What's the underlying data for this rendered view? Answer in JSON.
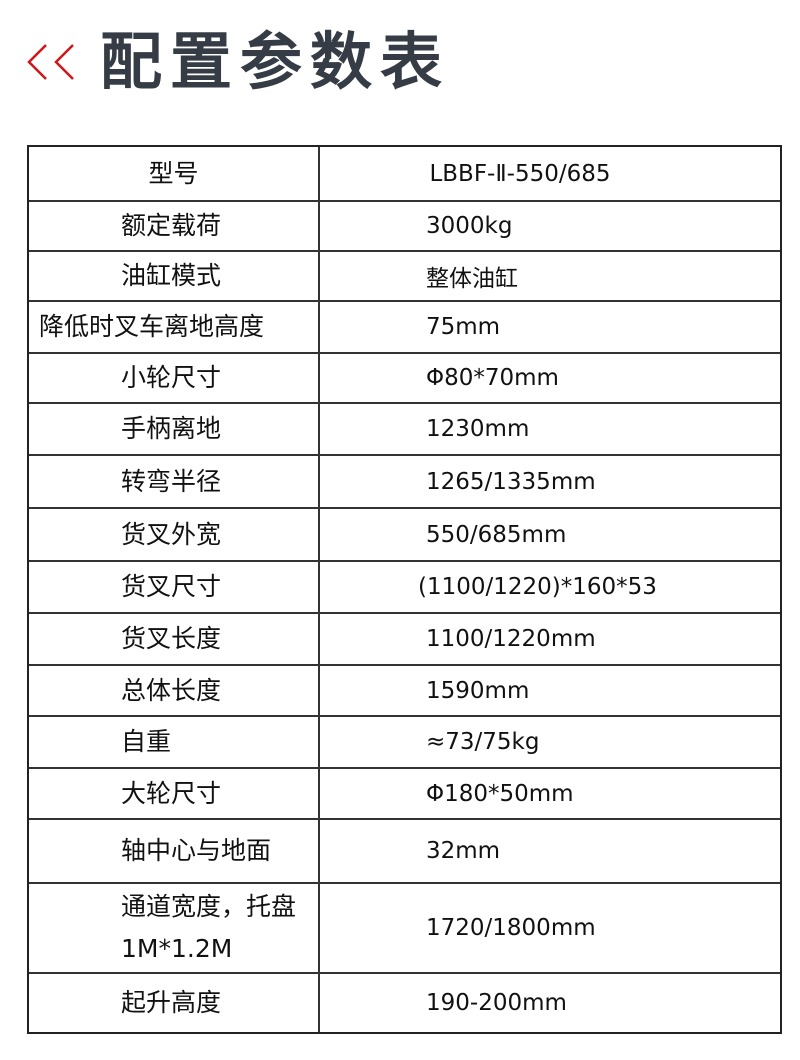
{
  "header": {
    "title": "配置参数表",
    "accent_color": "#d0161b",
    "title_color": "#363c45",
    "icon": "double-chevron-left-icon"
  },
  "table": {
    "rows": [
      {
        "label": "型号",
        "value": "LBBF-Ⅱ-550/685"
      },
      {
        "label": "额定载荷",
        "value": "3000kg"
      },
      {
        "label": "油缸模式",
        "value": "整体油缸"
      },
      {
        "label": "降低时叉车离地高度",
        "value": "75mm"
      },
      {
        "label": "小轮尺寸",
        "value": "Φ80*70mm"
      },
      {
        "label": "手柄离地",
        "value": "1230mm"
      },
      {
        "label": "转弯半径",
        "value": "1265/1335mm"
      },
      {
        "label": "货叉外宽",
        "value": "550/685mm"
      },
      {
        "label": "货叉尺寸",
        "value": "(1100/1220)*160*53"
      },
      {
        "label": "货叉长度",
        "value": "1100/1220mm"
      },
      {
        "label": "总体长度",
        "value": "1590mm"
      },
      {
        "label": "自重",
        "value": "≈73/75kg"
      },
      {
        "label": "大轮尺寸",
        "value": "Φ180*50mm"
      },
      {
        "label": "轴中心与地面",
        "value": "32mm"
      },
      {
        "label": "通道宽度，托盘1M*1.2M",
        "value": "1720/1800mm"
      },
      {
        "label": "起升高度",
        "value": "190-200mm"
      }
    ]
  }
}
